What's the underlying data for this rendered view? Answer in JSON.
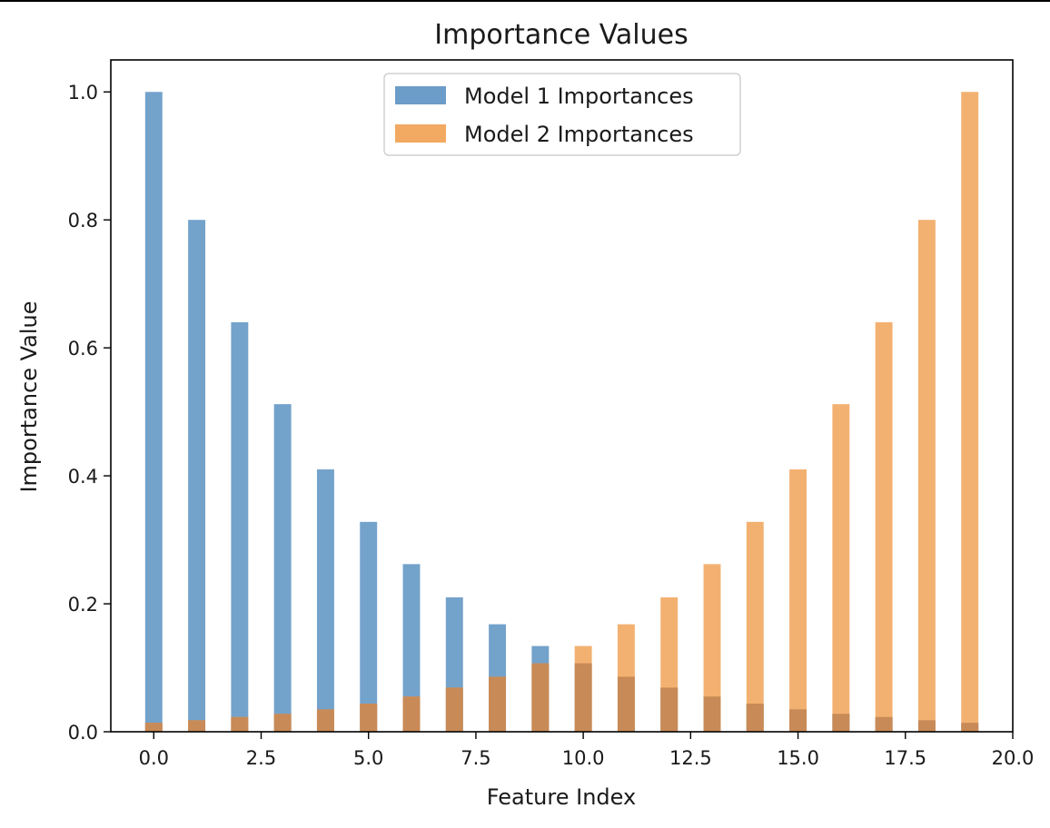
{
  "chart_data": {
    "type": "bar",
    "title": "Importance Values",
    "xlabel": "Feature Index",
    "ylabel": "Importance Value",
    "xlim": [
      -1,
      20
    ],
    "ylim": [
      0,
      1.05
    ],
    "x_ticks": [
      0.0,
      2.5,
      5.0,
      7.5,
      10.0,
      12.5,
      15.0,
      17.5,
      20.0
    ],
    "x_tick_labels": [
      "0.0",
      "2.5",
      "5.0",
      "7.5",
      "10.0",
      "12.5",
      "15.0",
      "17.5",
      "20.0"
    ],
    "y_ticks": [
      0.0,
      0.2,
      0.4,
      0.6,
      0.8,
      1.0
    ],
    "y_tick_labels": [
      "0.0",
      "0.2",
      "0.4",
      "0.6",
      "0.8",
      "1.0"
    ],
    "bar_width": 0.4,
    "x": [
      0,
      1,
      2,
      3,
      4,
      5,
      6,
      7,
      8,
      9,
      10,
      11,
      12,
      13,
      14,
      15,
      16,
      17,
      18,
      19
    ],
    "grid": false,
    "legend_position": "top-center",
    "series": [
      {
        "name": "Model 1 Importances",
        "color": "#6b9dc8",
        "values": [
          1.0,
          0.8,
          0.64,
          0.512,
          0.41,
          0.328,
          0.262,
          0.21,
          0.168,
          0.134,
          0.107,
          0.086,
          0.069,
          0.055,
          0.044,
          0.035,
          0.028,
          0.023,
          0.018,
          0.014
        ]
      },
      {
        "name": "Model 2 Importances",
        "color": "#f2a962",
        "values": [
          0.014,
          0.018,
          0.023,
          0.028,
          0.035,
          0.044,
          0.055,
          0.069,
          0.086,
          0.107,
          0.134,
          0.168,
          0.21,
          0.262,
          0.328,
          0.41,
          0.512,
          0.64,
          0.8,
          1.0
        ]
      }
    ]
  }
}
